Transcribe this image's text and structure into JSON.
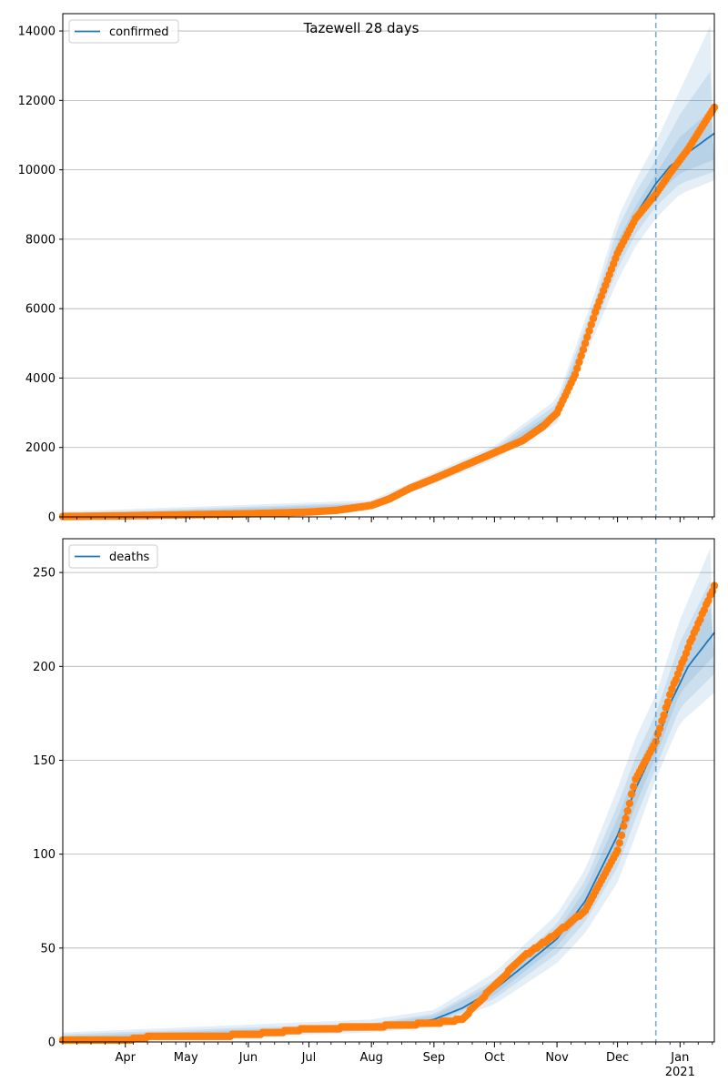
{
  "chart_data": [
    {
      "type": "line",
      "title": "Tazewell 28 days",
      "legend": {
        "label": "confirmed",
        "placement": "top-left"
      },
      "grid": "y",
      "ylim": [
        0,
        14500
      ],
      "yticks": [
        0,
        2000,
        4000,
        6000,
        8000,
        10000,
        12000,
        14000
      ],
      "xlim": [
        "2020-03-01",
        "2021-01-18"
      ],
      "forecast_start": "2020-12-20",
      "colors": {
        "model": "#1f77b4",
        "observed": "#ff7f0e",
        "band": "#1f77b4"
      },
      "model_series": {
        "name": "confirmed",
        "x": [
          "2020-03-01",
          "2020-04-01",
          "2020-05-01",
          "2020-06-01",
          "2020-07-01",
          "2020-07-15",
          "2020-08-01",
          "2020-08-15",
          "2020-09-01",
          "2020-09-15",
          "2020-10-01",
          "2020-10-15",
          "2020-11-01",
          "2020-11-10",
          "2020-11-20",
          "2020-12-01",
          "2020-12-10",
          "2020-12-20",
          "2020-12-27",
          "2021-01-05",
          "2021-01-18"
        ],
        "y": [
          0,
          20,
          50,
          80,
          120,
          180,
          350,
          700,
          1150,
          1500,
          1850,
          2300,
          3000,
          4000,
          5900,
          7700,
          8700,
          9600,
          10100,
          10500,
          11050
        ]
      },
      "bands": [
        {
          "x": [
            "2020-03-01",
            "2020-08-01",
            "2020-10-01",
            "2020-11-01",
            "2020-11-20",
            "2020-12-01",
            "2020-12-10",
            "2020-12-20",
            "2021-01-01",
            "2021-01-18"
          ],
          "lower": [
            0,
            250,
            1650,
            2700,
            5300,
            6800,
            7800,
            8600,
            9300,
            9700
          ],
          "upper": [
            150,
            480,
            2050,
            3400,
            6500,
            8600,
            9700,
            10800,
            12300,
            14400
          ]
        },
        {
          "x": [
            "2020-03-01",
            "2020-08-01",
            "2020-10-01",
            "2020-11-01",
            "2020-11-20",
            "2020-12-01",
            "2020-12-10",
            "2020-12-20",
            "2021-01-01",
            "2021-01-18"
          ],
          "lower": [
            0,
            290,
            1720,
            2820,
            5550,
            7150,
            8150,
            8950,
            9600,
            9950
          ],
          "upper": [
            100,
            420,
            1980,
            3250,
            6250,
            8300,
            9350,
            10300,
            11600,
            13000
          ]
        },
        {
          "x": [
            "2020-03-01",
            "2020-08-01",
            "2020-10-01",
            "2020-11-01",
            "2020-11-20",
            "2020-12-01",
            "2020-12-10",
            "2020-12-20",
            "2021-01-01",
            "2021-01-18"
          ],
          "lower": [
            0,
            320,
            1790,
            2920,
            5750,
            7450,
            8450,
            9250,
            9900,
            10300
          ],
          "upper": [
            60,
            380,
            1910,
            3100,
            6050,
            7950,
            8950,
            9900,
            10950,
            11800
          ]
        }
      ],
      "observed_series": {
        "x": [
          "2020-03-01",
          "2020-04-01",
          "2020-05-01",
          "2020-06-01",
          "2020-07-01",
          "2020-07-15",
          "2020-08-01",
          "2020-08-10",
          "2020-08-20",
          "2020-09-01",
          "2020-09-15",
          "2020-10-01",
          "2020-10-15",
          "2020-10-25",
          "2020-11-01",
          "2020-11-10",
          "2020-11-20",
          "2020-12-01",
          "2020-12-10",
          "2020-12-20",
          "2020-12-27",
          "2021-01-05",
          "2021-01-18"
        ],
        "y": [
          10,
          30,
          60,
          90,
          140,
          190,
          330,
          520,
          820,
          1100,
          1450,
          1850,
          2200,
          2600,
          3000,
          4100,
          5900,
          7600,
          8600,
          9300,
          9900,
          10600,
          11800
        ]
      }
    },
    {
      "type": "line",
      "title": "",
      "legend": {
        "label": "deaths",
        "placement": "top-left"
      },
      "grid": "y",
      "ylim": [
        0,
        268
      ],
      "yticks": [
        0,
        50,
        100,
        150,
        200,
        250
      ],
      "xlim": [
        "2020-03-01",
        "2021-01-18"
      ],
      "x_tick_labels": [
        "Apr",
        "May",
        "Jun",
        "Jul",
        "Aug",
        "Sep",
        "Oct",
        "Nov",
        "Dec",
        "Jan",
        "2021"
      ],
      "x_ticks": [
        "2020-04-01",
        "2020-05-01",
        "2020-06-01",
        "2020-07-01",
        "2020-08-01",
        "2020-09-01",
        "2020-10-01",
        "2020-11-01",
        "2020-12-01",
        "2021-01-01"
      ],
      "forecast_start": "2020-12-20",
      "colors": {
        "model": "#1f77b4",
        "observed": "#ff7f0e",
        "band": "#1f77b4"
      },
      "model_series": {
        "name": "deaths",
        "x": [
          "2020-03-01",
          "2020-04-01",
          "2020-05-01",
          "2020-06-01",
          "2020-07-01",
          "2020-08-01",
          "2020-08-15",
          "2020-09-01",
          "2020-09-15",
          "2020-10-01",
          "2020-10-15",
          "2020-11-01",
          "2020-11-15",
          "2020-12-01",
          "2020-12-10",
          "2020-12-20",
          "2020-12-27",
          "2021-01-05",
          "2021-01-18"
        ],
        "y": [
          1,
          2,
          3,
          4,
          6,
          8,
          9,
          12,
          18,
          28,
          40,
          55,
          75,
          110,
          135,
          158,
          180,
          200,
          218
        ]
      },
      "bands": [
        {
          "x": [
            "2020-03-01",
            "2020-08-01",
            "2020-09-01",
            "2020-10-01",
            "2020-11-01",
            "2020-11-15",
            "2020-12-01",
            "2020-12-10",
            "2020-12-20",
            "2021-01-01",
            "2021-01-18"
          ],
          "lower": [
            0,
            5,
            8,
            20,
            42,
            58,
            85,
            110,
            140,
            170,
            186
          ],
          "upper": [
            5,
            12,
            17,
            37,
            68,
            92,
            135,
            162,
            185,
            225,
            268
          ]
        },
        {
          "x": [
            "2020-03-01",
            "2020-08-01",
            "2020-09-01",
            "2020-10-01",
            "2020-11-01",
            "2020-11-15",
            "2020-12-01",
            "2020-12-10",
            "2020-12-20",
            "2021-01-01",
            "2021-01-18"
          ],
          "lower": [
            0,
            6,
            9,
            23,
            47,
            64,
            93,
            119,
            146,
            178,
            196
          ],
          "upper": [
            4,
            10,
            15,
            33,
            63,
            86,
            126,
            152,
            175,
            213,
            250
          ]
        },
        {
          "x": [
            "2020-03-01",
            "2020-08-01",
            "2020-09-01",
            "2020-10-01",
            "2020-11-01",
            "2020-11-15",
            "2020-12-01",
            "2020-12-10",
            "2020-12-20",
            "2021-01-01",
            "2021-01-18"
          ],
          "lower": [
            0,
            7,
            10,
            25,
            51,
            69,
            100,
            126,
            152,
            186,
            206
          ],
          "upper": [
            3,
            9,
            14,
            31,
            59,
            81,
            119,
            144,
            167,
            203,
            235
          ]
        }
      ],
      "observed_series": {
        "x": [
          "2020-03-01",
          "2020-04-01",
          "2020-04-15",
          "2020-05-01",
          "2020-05-15",
          "2020-06-01",
          "2020-06-15",
          "2020-07-01",
          "2020-08-01",
          "2020-08-15",
          "2020-09-01",
          "2020-09-15",
          "2020-10-01",
          "2020-10-15",
          "2020-11-01",
          "2020-11-15",
          "2020-12-01",
          "2020-12-10",
          "2020-12-20",
          "2020-12-27",
          "2021-01-05",
          "2021-01-18"
        ],
        "y": [
          1,
          1,
          3,
          3,
          3,
          4,
          5,
          7,
          8,
          9,
          10,
          12,
          30,
          45,
          58,
          70,
          102,
          140,
          160,
          185,
          210,
          243
        ]
      }
    }
  ]
}
